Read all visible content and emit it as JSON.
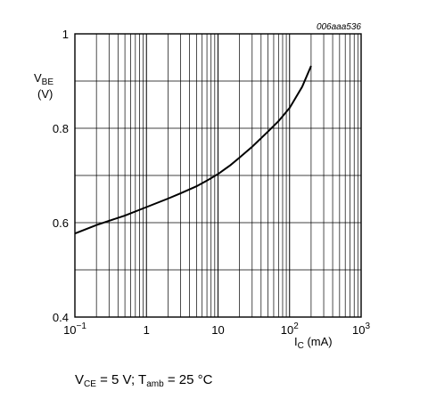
{
  "figure_code": "006aaa536",
  "conditions": {
    "vce_sym": "V",
    "vce_sub": "CE",
    "vce_val": " = 5 V; ",
    "tamb_sym": "T",
    "tamb_sub": "amb",
    "tamb_val": " = 25 °C"
  },
  "chart_data": {
    "type": "line",
    "title": "",
    "x_scale": "log",
    "xlim": [
      0.1,
      1000
    ],
    "ylim": [
      0.4,
      1.0
    ],
    "xlabel": {
      "sym": "I",
      "sub": "C",
      "unit": " (mA)"
    },
    "ylabel": {
      "sym": "V",
      "sub": "BE",
      "unit": "(V)"
    },
    "x_ticks": [
      {
        "value": 0.1,
        "base": "10",
        "exp": "−1"
      },
      {
        "value": 1,
        "base": "1",
        "exp": ""
      },
      {
        "value": 10,
        "base": "10",
        "exp": ""
      },
      {
        "value": 100,
        "base": "10",
        "exp": "2"
      },
      {
        "value": 1000,
        "base": "10",
        "exp": "3"
      }
    ],
    "y_ticks": [
      {
        "value": 0.4,
        "label": "0.4"
      },
      {
        "value": 0.6,
        "label": "0.6"
      },
      {
        "value": 0.8,
        "label": "0.8"
      },
      {
        "value": 1.0,
        "label": "1"
      }
    ],
    "grid": true,
    "series": [
      {
        "x": [
          0.1,
          0.2,
          0.3,
          0.5,
          1,
          2,
          3,
          5,
          7,
          10,
          15,
          20,
          30,
          50,
          70,
          100,
          150,
          200
        ],
        "y": [
          0.577,
          0.595,
          0.604,
          0.615,
          0.633,
          0.651,
          0.662,
          0.677,
          0.689,
          0.703,
          0.722,
          0.738,
          0.761,
          0.793,
          0.815,
          0.843,
          0.888,
          0.932
        ]
      }
    ]
  }
}
